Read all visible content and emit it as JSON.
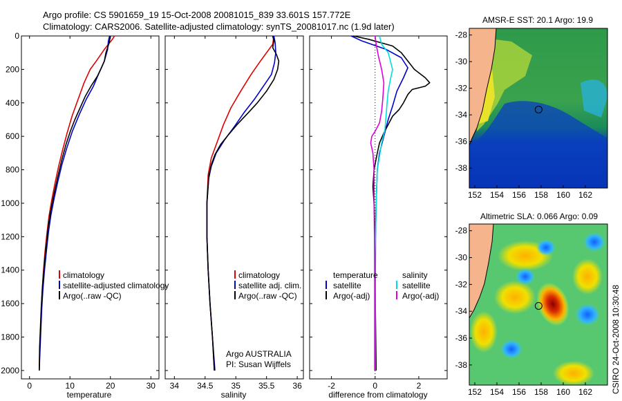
{
  "header": {
    "line1": "Argo profile: CS 5901659_19 15-Oct-2008 20081015_839 33.601S 157.772E",
    "line2": "Climatology: CARS2006. Satellite-adjusted climatology: synTS_20081017.nc (1.9d later)"
  },
  "credit": {
    "country": "Argo AUSTRALIA",
    "pi": "PI: Susan Wijffels",
    "stamp": "CSIRO 24-Oct-2008 10:30:48"
  },
  "colors": {
    "climatology": "#dd0000",
    "satellite": "#0000cc",
    "argo": "#000000",
    "satellite_salinity": "#00dddd",
    "argo_salinity": "#dd00dd",
    "land": "#f5b48c"
  },
  "chart_data": [
    {
      "id": "temperature",
      "type": "line",
      "xlabel": "temperature",
      "ylabel": "",
      "xlim": [
        -2,
        32
      ],
      "ylim": [
        0,
        2050
      ],
      "y_reversed": true,
      "xticks": [
        0,
        10,
        20,
        30
      ],
      "yticks": [
        0,
        200,
        400,
        600,
        800,
        1000,
        1200,
        1400,
        1600,
        1800,
        2000
      ],
      "legend": {
        "position": "lower-center",
        "entries": [
          "climatology",
          "satellite-adjusted climatology",
          "Argo(..raw -QC)"
        ]
      },
      "series": [
        {
          "name": "climatology",
          "color": "#dd0000",
          "points": [
            [
              21,
              0
            ],
            [
              20.5,
              20
            ],
            [
              18.5,
              80
            ],
            [
              16.5,
              150
            ],
            [
              15,
              200
            ],
            [
              13.5,
              280
            ],
            [
              12,
              380
            ],
            [
              10.5,
              480
            ],
            [
              9.3,
              580
            ],
            [
              8.2,
              680
            ],
            [
              7.2,
              780
            ],
            [
              6.3,
              880
            ],
            [
              5.5,
              980
            ],
            [
              4.8,
              1080
            ],
            [
              4.3,
              1180
            ],
            [
              3.8,
              1300
            ],
            [
              3.4,
              1420
            ],
            [
              3.1,
              1540
            ],
            [
              2.9,
              1660
            ],
            [
              2.7,
              1780
            ],
            [
              2.5,
              1900
            ],
            [
              2.4,
              2000
            ]
          ]
        },
        {
          "name": "satellite-adjusted climatology",
          "color": "#0000cc",
          "points": [
            [
              19.8,
              0
            ],
            [
              19.5,
              30
            ],
            [
              19.3,
              80
            ],
            [
              18.5,
              150
            ],
            [
              17.2,
              220
            ],
            [
              15.8,
              300
            ],
            [
              14,
              380
            ],
            [
              12.3,
              470
            ],
            [
              10.6,
              570
            ],
            [
              9.2,
              670
            ],
            [
              8,
              770
            ],
            [
              7,
              870
            ],
            [
              6.1,
              970
            ],
            [
              5.3,
              1070
            ],
            [
              4.7,
              1170
            ],
            [
              4.2,
              1280
            ],
            [
              3.7,
              1400
            ],
            [
              3.3,
              1520
            ],
            [
              3,
              1640
            ],
            [
              2.8,
              1760
            ],
            [
              2.6,
              1880
            ],
            [
              2.4,
              2000
            ]
          ]
        },
        {
          "name": "Argo(..raw -QC)",
          "color": "#000000",
          "points": [
            [
              20,
              0
            ],
            [
              19.7,
              40
            ],
            [
              18.9,
              100
            ],
            [
              18.5,
              150
            ],
            [
              17.6,
              200
            ],
            [
              16.8,
              240
            ],
            [
              15.2,
              300
            ],
            [
              13.8,
              360
            ],
            [
              12.5,
              430
            ],
            [
              11.2,
              500
            ],
            [
              10.1,
              570
            ],
            [
              9,
              650
            ],
            [
              8,
              740
            ],
            [
              7,
              840
            ],
            [
              6.1,
              940
            ],
            [
              5.2,
              1050
            ],
            [
              4.6,
              1150
            ],
            [
              4.1,
              1260
            ],
            [
              3.6,
              1380
            ],
            [
              3.2,
              1500
            ],
            [
              2.9,
              1620
            ],
            [
              2.7,
              1740
            ],
            [
              2.5,
              1860
            ],
            [
              2.4,
              2000
            ]
          ]
        }
      ]
    },
    {
      "id": "salinity",
      "type": "line",
      "xlabel": "salinity",
      "ylabel": "",
      "xlim": [
        33.85,
        36.1
      ],
      "ylim": [
        0,
        2050
      ],
      "y_reversed": true,
      "xticks": [
        34,
        34.5,
        35,
        35.5,
        36
      ],
      "legend": {
        "position": "lower-center",
        "entries": [
          "climatology",
          "satellite adj. clim.",
          "Argo(..raw -QC)"
        ]
      },
      "series": [
        {
          "name": "climatology",
          "color": "#dd0000",
          "points": [
            [
              35.62,
              0
            ],
            [
              35.6,
              50
            ],
            [
              35.5,
              100
            ],
            [
              35.4,
              150
            ],
            [
              35.25,
              230
            ],
            [
              35.08,
              330
            ],
            [
              34.92,
              430
            ],
            [
              34.8,
              530
            ],
            [
              34.7,
              630
            ],
            [
              34.6,
              730
            ],
            [
              34.55,
              830
            ],
            [
              34.53,
              1000
            ],
            [
              34.53,
              1200
            ],
            [
              34.55,
              1400
            ],
            [
              34.58,
              1600
            ],
            [
              34.62,
              1800
            ],
            [
              34.65,
              2000
            ]
          ]
        },
        {
          "name": "satellite adj. clim.",
          "color": "#0000cc",
          "points": [
            [
              35.62,
              0
            ],
            [
              35.64,
              40
            ],
            [
              35.65,
              100
            ],
            [
              35.63,
              160
            ],
            [
              35.58,
              230
            ],
            [
              35.45,
              300
            ],
            [
              35.3,
              380
            ],
            [
              35.13,
              460
            ],
            [
              34.98,
              540
            ],
            [
              34.82,
              620
            ],
            [
              34.68,
              700
            ],
            [
              34.6,
              780
            ],
            [
              34.56,
              850
            ],
            [
              34.53,
              1000
            ],
            [
              34.53,
              1200
            ],
            [
              34.55,
              1400
            ],
            [
              34.58,
              1600
            ],
            [
              34.62,
              1800
            ],
            [
              34.66,
              2000
            ]
          ]
        },
        {
          "name": "Argo(..raw -QC)",
          "color": "#000000",
          "points": [
            [
              35.6,
              0
            ],
            [
              35.62,
              30
            ],
            [
              35.6,
              70
            ],
            [
              35.66,
              110
            ],
            [
              35.7,
              150
            ],
            [
              35.68,
              200
            ],
            [
              35.62,
              260
            ],
            [
              35.5,
              330
            ],
            [
              35.35,
              400
            ],
            [
              35.2,
              460
            ],
            [
              35.02,
              530
            ],
            [
              34.88,
              590
            ],
            [
              34.75,
              650
            ],
            [
              34.66,
              710
            ],
            [
              34.6,
              770
            ],
            [
              34.56,
              840
            ],
            [
              34.53,
              1000
            ],
            [
              34.53,
              1200
            ],
            [
              34.55,
              1400
            ],
            [
              34.58,
              1600
            ],
            [
              34.62,
              1800
            ],
            [
              34.65,
              2000
            ]
          ]
        }
      ]
    },
    {
      "id": "difference",
      "type": "line",
      "xlabel": "difference from climatology",
      "ylabel": "",
      "xlim": [
        -3,
        3.3
      ],
      "ylim": [
        0,
        2050
      ],
      "y_reversed": true,
      "xticks": [
        -2,
        0,
        2
      ],
      "zero_line": "dotted",
      "legend": {
        "position": "lower-center",
        "columns": [
          {
            "title": "temperature",
            "entries": [
              "satellite",
              "Argo(-adj)"
            ]
          },
          {
            "title": "salinity",
            "entries": [
              "satellite",
              "Argo(-adj)"
            ]
          }
        ]
      },
      "series": [
        {
          "name": "temperature satellite",
          "color": "#0000cc",
          "points": [
            [
              -1.1,
              0
            ],
            [
              -0.6,
              30
            ],
            [
              0.5,
              80
            ],
            [
              1.2,
              130
            ],
            [
              1.5,
              190
            ],
            [
              1.3,
              250
            ],
            [
              1,
              330
            ],
            [
              0.8,
              420
            ],
            [
              0.6,
              500
            ],
            [
              0.4,
              600
            ],
            [
              0.2,
              700
            ],
            [
              0.1,
              800
            ],
            [
              0.05,
              1000
            ],
            [
              0.02,
              1200
            ],
            [
              0.01,
              1500
            ],
            [
              0.01,
              2000
            ]
          ]
        },
        {
          "name": "temperature Argo(-adj)",
          "color": "#000000",
          "points": [
            [
              -1,
              0
            ],
            [
              -0.3,
              20
            ],
            [
              0.8,
              60
            ],
            [
              1.2,
              100
            ],
            [
              1.5,
              150
            ],
            [
              1.8,
              200
            ],
            [
              2.3,
              250
            ],
            [
              2.5,
              280
            ],
            [
              2.3,
              300
            ],
            [
              1.7,
              320
            ],
            [
              1.5,
              350
            ],
            [
              1.3,
              400
            ],
            [
              1.1,
              440
            ],
            [
              0.8,
              480
            ],
            [
              0.6,
              530
            ],
            [
              0.4,
              580
            ],
            [
              0.2,
              640
            ],
            [
              0.1,
              700
            ],
            [
              -0.05,
              800
            ],
            [
              -0.1,
              900
            ],
            [
              -0.05,
              1000
            ],
            [
              0,
              1200
            ],
            [
              0,
              1500
            ],
            [
              0.05,
              2000
            ]
          ]
        },
        {
          "name": "salinity satellite",
          "color": "#00dddd",
          "points": [
            [
              0.2,
              0
            ],
            [
              0.3,
              50
            ],
            [
              0.6,
              100
            ],
            [
              0.7,
              150
            ],
            [
              0.8,
              200
            ],
            [
              0.7,
              260
            ],
            [
              0.6,
              330
            ],
            [
              0.55,
              400
            ],
            [
              0.5,
              480
            ],
            [
              0.45,
              560
            ],
            [
              0.3,
              640
            ],
            [
              0.2,
              720
            ],
            [
              0.1,
              800
            ],
            [
              0.05,
              1000
            ],
            [
              0,
              1300
            ],
            [
              0,
              2000
            ]
          ]
        },
        {
          "name": "salinity Argo(-adj)",
          "color": "#dd00dd",
          "points": [
            [
              0,
              0
            ],
            [
              0.05,
              50
            ],
            [
              0.15,
              120
            ],
            [
              0.3,
              200
            ],
            [
              0.4,
              280
            ],
            [
              0.35,
              380
            ],
            [
              0.3,
              450
            ],
            [
              0.2,
              520
            ],
            [
              0,
              570
            ],
            [
              -0.15,
              600
            ],
            [
              -0.2,
              640
            ],
            [
              -0.1,
              700
            ],
            [
              -0.05,
              800
            ],
            [
              -0.05,
              1000
            ],
            [
              -0.03,
              1200
            ],
            [
              -0.02,
              1500
            ],
            [
              -0.02,
              2000
            ]
          ]
        }
      ]
    },
    {
      "id": "sst-map",
      "type": "heatmap",
      "title": "AMSR-E SST: 20.1  Argo: 19.9",
      "xlim": [
        151.5,
        164
      ],
      "ylim": [
        -39.5,
        -27.5
      ],
      "xticks": [
        152,
        154,
        156,
        158,
        160,
        162
      ],
      "yticks": [
        -28,
        -30,
        -32,
        -34,
        -36,
        -38
      ],
      "marker": {
        "lon": 157.772,
        "lat": -33.601
      }
    },
    {
      "id": "sla-map",
      "type": "heatmap",
      "title": "Altimetric SLA: 0.066  Argo: 0.09",
      "xlim": [
        151.5,
        164
      ],
      "ylim": [
        -39.5,
        -27.5
      ],
      "xticks": [
        152,
        154,
        156,
        158,
        160,
        162
      ],
      "yticks": [
        -28,
        -30,
        -32,
        -34,
        -36,
        -38
      ],
      "marker": {
        "lon": 157.772,
        "lat": -33.601
      }
    }
  ]
}
